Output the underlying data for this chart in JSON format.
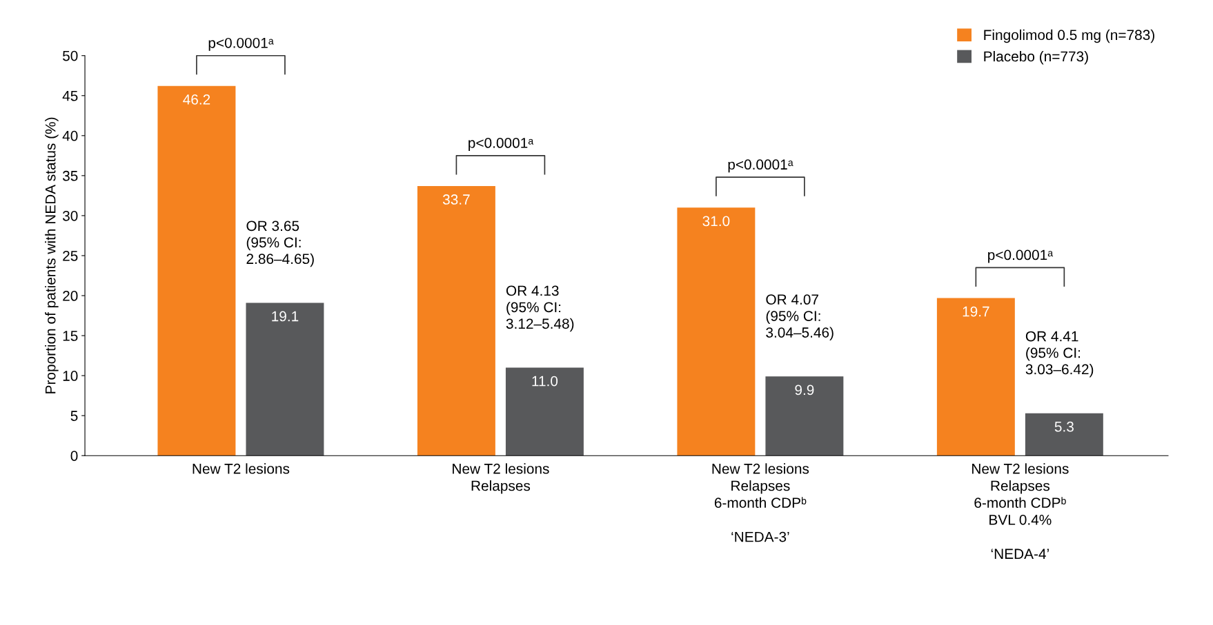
{
  "chart_data": {
    "type": "bar",
    "ylabel": "Proportion of patients with NEDA status (%)",
    "categories": [
      "New T2 lesions",
      "New T2 lesions\nRelapses",
      "New T2 lesions\nRelapses\n6-month CDPᵇ\n\n‘NEDA-3’",
      "New T2 lesions\nRelapses\n6-month CDPᵇ\nBVL 0.4%\n\n‘NEDA-4’"
    ],
    "series": [
      {
        "name": "Fingolimod 0.5 mg (n=783)",
        "color": "#f5821f",
        "values": [
          46.2,
          33.7,
          31.0,
          19.7
        ],
        "value_labels": [
          "46.2",
          "33.7",
          "31.0",
          "19.7"
        ]
      },
      {
        "name": "Placebo (n=773)",
        "color": "#58595b",
        "values": [
          19.1,
          11.0,
          9.9,
          5.3
        ],
        "value_labels": [
          "19.1",
          "11.0",
          "9.9",
          "5.3"
        ]
      }
    ],
    "ylim": [
      0,
      50
    ],
    "yticks": [
      0,
      5,
      10,
      15,
      20,
      25,
      30,
      35,
      40,
      45,
      50
    ],
    "legend": "top right",
    "grid": false,
    "annotations": [
      "p<0.0001ᵃ",
      "OR 3.65\n(95% CI:\n2.86–4.65)",
      "p<0.0001ᵃ",
      "OR 4.13\n(95% CI:\n3.12–5.48)",
      "p<0.0001ᵃ",
      "OR 4.07\n(95% CI:\n3.04–5.46)",
      "p<0.0001ᵃ",
      "OR 4.41\n(95% CI:\n3.03–6.42)"
    ]
  }
}
